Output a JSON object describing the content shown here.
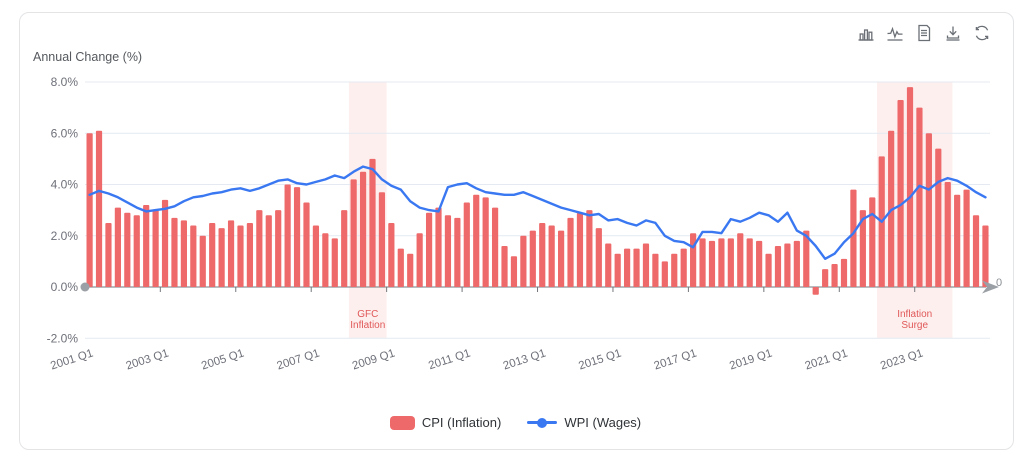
{
  "chart": {
    "title": "Annual Change (%)",
    "toolbar_icons": [
      "bar-chart",
      "line-chart",
      "data-view",
      "download",
      "refresh"
    ],
    "x_axis": {
      "end_label": "0"
    },
    "colors": {
      "grid": "#e4e9f2",
      "axis": "#73777c",
      "tick_label": "#6e7079",
      "handle": "#9aa0a6",
      "annotation_fill": "#fdefee",
      "annotation_text": "#e05858"
    }
  },
  "chart_data": {
    "type": "bar",
    "title": "Annual Change (%)",
    "xlabel": "",
    "ylabel": "Annual Change (%)",
    "ylim": [
      -2,
      8
    ],
    "grid": true,
    "legend_position": "bottom",
    "x_tick_interval": 8,
    "x_tick_labels": [
      "2001 Q1",
      "2003 Q1",
      "2005 Q1",
      "2007 Q1",
      "2009 Q1",
      "2011 Q1",
      "2013 Q1",
      "2015 Q1",
      "2017 Q1",
      "2019 Q1",
      "2021 Q1",
      "2023 Q1"
    ],
    "y_ticks": [
      {
        "v": 8,
        "label": "8.0%"
      },
      {
        "v": 6,
        "label": "6.0%"
      },
      {
        "v": 4,
        "label": "4.0%"
      },
      {
        "v": 2,
        "label": "2.0%"
      },
      {
        "v": 0,
        "label": "0.0%"
      },
      {
        "v": -2,
        "label": "-2.0%"
      }
    ],
    "x": [
      "2001 Q1",
      "2001 Q2",
      "2001 Q3",
      "2001 Q4",
      "2002 Q1",
      "2002 Q2",
      "2002 Q3",
      "2002 Q4",
      "2003 Q1",
      "2003 Q2",
      "2003 Q3",
      "2003 Q4",
      "2004 Q1",
      "2004 Q2",
      "2004 Q3",
      "2004 Q4",
      "2005 Q1",
      "2005 Q2",
      "2005 Q3",
      "2005 Q4",
      "2006 Q1",
      "2006 Q2",
      "2006 Q3",
      "2006 Q4",
      "2007 Q1",
      "2007 Q2",
      "2007 Q3",
      "2007 Q4",
      "2008 Q1",
      "2008 Q2",
      "2008 Q3",
      "2008 Q4",
      "2009 Q1",
      "2009 Q2",
      "2009 Q3",
      "2009 Q4",
      "2010 Q1",
      "2010 Q2",
      "2010 Q3",
      "2010 Q4",
      "2011 Q1",
      "2011 Q2",
      "2011 Q3",
      "2011 Q4",
      "2012 Q1",
      "2012 Q2",
      "2012 Q3",
      "2012 Q4",
      "2013 Q1",
      "2013 Q2",
      "2013 Q3",
      "2013 Q4",
      "2014 Q1",
      "2014 Q2",
      "2014 Q3",
      "2014 Q4",
      "2015 Q1",
      "2015 Q2",
      "2015 Q3",
      "2015 Q4",
      "2016 Q1",
      "2016 Q2",
      "2016 Q3",
      "2016 Q4",
      "2017 Q1",
      "2017 Q2",
      "2017 Q3",
      "2017 Q4",
      "2018 Q1",
      "2018 Q2",
      "2018 Q3",
      "2018 Q4",
      "2019 Q1",
      "2019 Q2",
      "2019 Q3",
      "2019 Q4",
      "2020 Q1",
      "2020 Q2",
      "2020 Q3",
      "2020 Q4",
      "2021 Q1",
      "2021 Q2",
      "2021 Q3",
      "2021 Q4",
      "2022 Q1",
      "2022 Q2",
      "2022 Q3",
      "2022 Q4",
      "2023 Q1",
      "2023 Q2",
      "2023 Q3",
      "2023 Q4",
      "2024 Q1",
      "2024 Q2",
      "2024 Q3",
      "2024 Q4"
    ],
    "series": [
      {
        "name": "CPI (Inflation)",
        "type": "bar",
        "color": "#ee6a6a",
        "values": [
          6.0,
          6.1,
          2.5,
          3.1,
          2.9,
          2.8,
          3.2,
          3.0,
          3.4,
          2.7,
          2.6,
          2.4,
          2.0,
          2.5,
          2.3,
          2.6,
          2.4,
          2.5,
          3.0,
          2.8,
          3.0,
          4.0,
          3.9,
          3.3,
          2.4,
          2.1,
          1.9,
          3.0,
          4.2,
          4.5,
          5.0,
          3.7,
          2.5,
          1.5,
          1.3,
          2.1,
          2.9,
          3.1,
          2.8,
          2.7,
          3.3,
          3.6,
          3.5,
          3.1,
          1.6,
          1.2,
          2.0,
          2.2,
          2.5,
          2.4,
          2.2,
          2.7,
          2.9,
          3.0,
          2.3,
          1.7,
          1.3,
          1.5,
          1.5,
          1.7,
          1.3,
          1.0,
          1.3,
          1.5,
          2.1,
          1.9,
          1.8,
          1.9,
          1.9,
          2.1,
          1.9,
          1.8,
          1.3,
          1.6,
          1.7,
          1.8,
          2.2,
          -0.3,
          0.7,
          0.9,
          1.1,
          3.8,
          3.0,
          3.5,
          5.1,
          6.1,
          7.3,
          7.8,
          7.0,
          6.0,
          5.4,
          4.1,
          3.6,
          3.8,
          2.8,
          2.4
        ]
      },
      {
        "name": "WPI (Wages)",
        "type": "line",
        "color": "#3a78f2",
        "values": [
          3.6,
          3.75,
          3.65,
          3.5,
          3.3,
          3.1,
          2.95,
          3.0,
          3.05,
          3.15,
          3.35,
          3.5,
          3.55,
          3.65,
          3.7,
          3.8,
          3.85,
          3.75,
          3.85,
          4.0,
          4.15,
          4.2,
          4.05,
          4.0,
          4.1,
          4.2,
          4.35,
          4.25,
          4.5,
          4.7,
          4.6,
          4.2,
          3.95,
          3.8,
          3.35,
          3.1,
          3.0,
          2.95,
          3.9,
          4.0,
          4.05,
          3.85,
          3.7,
          3.65,
          3.6,
          3.6,
          3.7,
          3.55,
          3.4,
          3.25,
          3.1,
          3.0,
          2.9,
          2.8,
          2.85,
          2.6,
          2.65,
          2.5,
          2.4,
          2.6,
          2.5,
          2.0,
          1.8,
          1.75,
          1.55,
          2.15,
          2.15,
          2.1,
          2.65,
          2.55,
          2.7,
          2.9,
          2.8,
          2.55,
          2.9,
          2.2,
          2.0,
          1.6,
          1.1,
          1.3,
          1.75,
          2.1,
          2.65,
          2.85,
          2.55,
          3.0,
          3.2,
          3.5,
          3.95,
          3.8,
          4.1,
          4.25,
          4.15,
          3.95,
          3.7,
          3.5
        ]
      }
    ],
    "annotations": [
      {
        "label": "GFC Inflation",
        "start": "2008 Q1",
        "end": "2008 Q4"
      },
      {
        "label": "Inflation Surge",
        "start": "2022 Q1",
        "end": "2023 Q4"
      }
    ]
  },
  "legend": {
    "cpi_label": "CPI (Inflation)",
    "wpi_label": "WPI (Wages)"
  }
}
